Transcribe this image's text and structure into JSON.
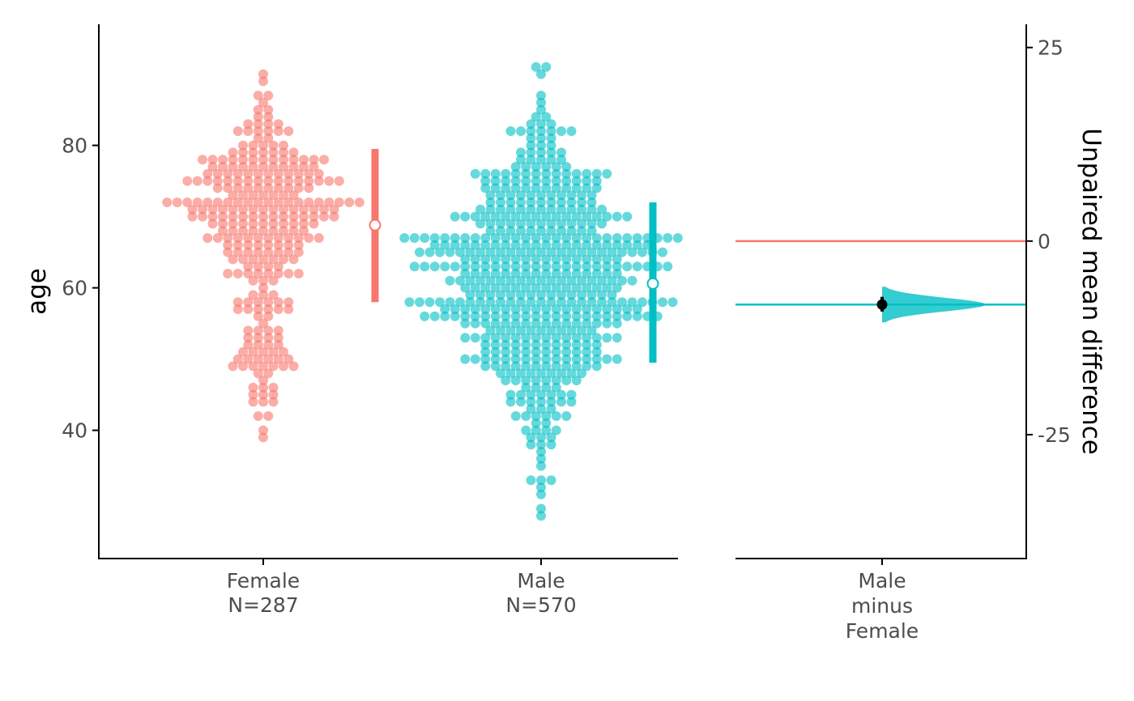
{
  "chart_data": {
    "type": "scatter",
    "subtype": "estimation-plot (swarm + mean difference)",
    "left_panel": {
      "ylabel": "age",
      "ylim": [
        22,
        97
      ],
      "yticks": [
        40,
        60,
        80
      ],
      "groups": [
        {
          "name": "Female",
          "n_label": "N=287",
          "n": 287,
          "mean": 68.8,
          "ci_low": 58.0,
          "ci_high": 79.5,
          "min": 39,
          "max": 90,
          "color": "#F8766D"
        },
        {
          "name": "Male",
          "n_label": "N=570",
          "n": 570,
          "mean": 60.6,
          "ci_low": 49.5,
          "ci_high": 72.0,
          "min": 28,
          "max": 91,
          "color": "#00BFC4"
        }
      ]
    },
    "right_panel": {
      "ylabel": "Unpaired mean difference",
      "ylim": [
        -41,
        28
      ],
      "yticks": [
        -25,
        0,
        25
      ],
      "comparison_lines": [
        "Male",
        "minus",
        "Female"
      ],
      "reference_value": 0,
      "mean_difference": -8.2,
      "ci": [
        -9.1,
        -7.2
      ],
      "distribution_range": [
        -10.5,
        -5.9
      ],
      "distribution_color": "#00BFC4"
    }
  }
}
